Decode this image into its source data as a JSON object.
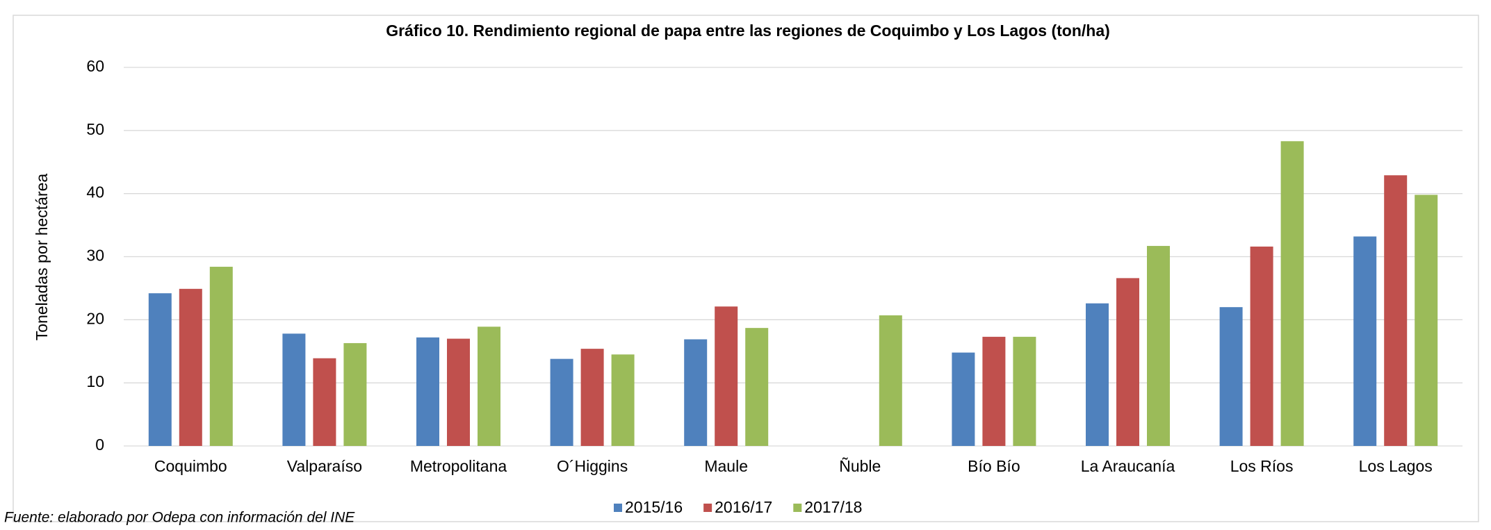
{
  "chart_data": {
    "type": "bar",
    "title": "Gráfico 10. Rendimiento regional de papa entre las regiones de Coquimbo y Los Lagos (ton/ha)",
    "y_label": "Toneladas por hectárea",
    "source": "Fuente: elaborado por Odepa con información del INE",
    "categories": [
      "Coquimbo",
      "Valparaíso",
      "Metropolitana",
      "O´Higgins",
      "Maule",
      "Ñuble",
      "Bío Bío",
      "La Araucanía",
      "Los Ríos",
      "Los Lagos"
    ],
    "series": [
      {
        "name": "2015/16",
        "color": "#4f81bd",
        "values": [
          24.2,
          17.8,
          17.2,
          13.8,
          16.9,
          null,
          14.8,
          22.6,
          22.0,
          33.2
        ]
      },
      {
        "name": "2016/17",
        "color": "#c0504d",
        "values": [
          24.9,
          13.9,
          17.0,
          15.4,
          22.1,
          null,
          17.3,
          26.6,
          31.6,
          42.9
        ]
      },
      {
        "name": "2017/18",
        "color": "#9bbb59",
        "values": [
          28.4,
          16.3,
          18.9,
          14.5,
          18.7,
          20.7,
          17.3,
          31.7,
          48.3,
          39.8
        ]
      }
    ],
    "ylim": [
      0,
      60
    ],
    "yticks": [
      0,
      10,
      20,
      30,
      40,
      50,
      60
    ],
    "grid": true,
    "legend": "bottom"
  }
}
